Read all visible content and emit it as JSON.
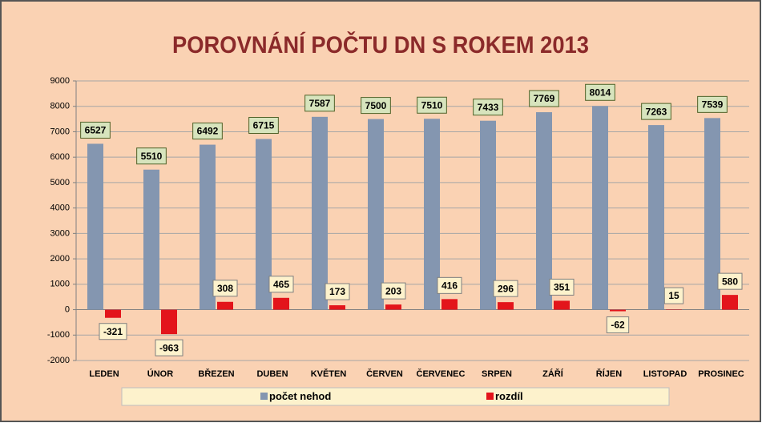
{
  "chart_data": {
    "type": "bar",
    "title": "POROVNÁNÍ POČTU DN S ROKEM 2013",
    "categories": [
      "LEDEN",
      "ÚNOR",
      "BŘEZEN",
      "DUBEN",
      "KVĚTEN",
      "ČERVEN",
      "ČERVENEC",
      "SRPEN",
      "ZÁŘÍ",
      "ŘÍJEN",
      "LISTOPAD",
      "PROSINEC"
    ],
    "series": [
      {
        "name": "počet nehod",
        "color": "#8496b0",
        "values": [
          6527,
          5510,
          6492,
          6715,
          7587,
          7500,
          7510,
          7433,
          7769,
          8014,
          7263,
          7539
        ]
      },
      {
        "name": "rozdíl",
        "color": "#e3141b",
        "values": [
          -321,
          -963,
          308,
          465,
          173,
          203,
          416,
          296,
          351,
          -62,
          15,
          580
        ]
      }
    ],
    "ylim": [
      -2000,
      9000
    ],
    "yticks": [
      -2000,
      -1000,
      0,
      1000,
      2000,
      3000,
      4000,
      5000,
      6000,
      7000,
      8000,
      9000
    ],
    "grid": true,
    "legend": "bottom"
  }
}
